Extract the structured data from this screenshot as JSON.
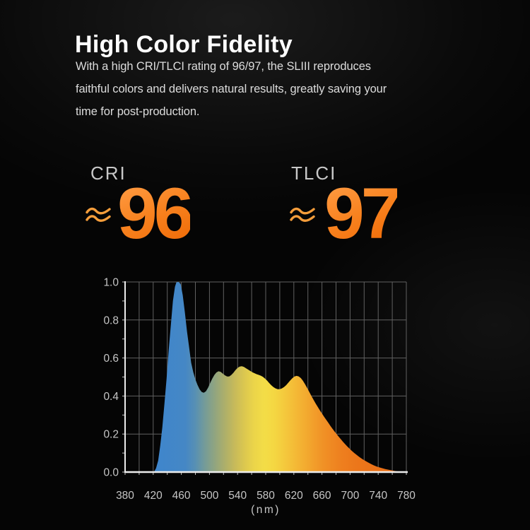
{
  "header": {
    "title": "High Color Fidelity",
    "body_lines": [
      "With a high CRI/TLCI rating of 96/97, the SLIII reproduces",
      "faithful colors and delivers natural results, greatly saving your",
      "time for post-production."
    ]
  },
  "stats": [
    {
      "label": "CRI",
      "approx_symbol": "≈",
      "value": "96"
    },
    {
      "label": "TLCI",
      "approx_symbol": "≈",
      "value": "97"
    }
  ],
  "colors": {
    "background": "#050505",
    "title_text": "#ffffff",
    "body_text": "#dcdcdc",
    "stat_label": "#c8c8c8",
    "stat_orange_light": "#ff9d45",
    "stat_orange_dark": "#ef6a06",
    "approx_orange": "#f49d3b",
    "axis": "#ececec",
    "grid": "#616161",
    "tick_text": "#c6c6c6",
    "spectrum_blue": "#3e86cd",
    "spectrum_yellow": "#f3dd47",
    "spectrum_orange": "#e86f18"
  },
  "chart_data": {
    "type": "area",
    "xlabel": "(nm)",
    "x_range": [
      380,
      780
    ],
    "y_range": [
      0,
      1
    ],
    "grid_x_step": 20,
    "grid_y_step": 0.2,
    "minor_tick_x_step": 20,
    "minor_tick_y_step": 0.1,
    "x_ticks": [
      380,
      420,
      460,
      500,
      540,
      580,
      620,
      660,
      700,
      740,
      780
    ],
    "y_ticks": [
      0,
      0.2,
      0.4,
      0.6,
      0.8,
      1
    ],
    "y_tick_labels": [
      "0.0",
      "0.2",
      "0.4",
      "0.6",
      "0.8",
      "1.0"
    ],
    "legend": "none",
    "points": [
      [
        421,
        0
      ],
      [
        424,
        0.02
      ],
      [
        427,
        0.06
      ],
      [
        430,
        0.14
      ],
      [
        433,
        0.235
      ],
      [
        436,
        0.36
      ],
      [
        439,
        0.49
      ],
      [
        442,
        0.64
      ],
      [
        445,
        0.77
      ],
      [
        448,
        0.9
      ],
      [
        451,
        0.975
      ],
      [
        453,
        0.998
      ],
      [
        456,
        1.0
      ],
      [
        459,
        0.99
      ],
      [
        462,
        0.93
      ],
      [
        465,
        0.84
      ],
      [
        468,
        0.74
      ],
      [
        471,
        0.66
      ],
      [
        474,
        0.575
      ],
      [
        477,
        0.525
      ],
      [
        480,
        0.487
      ],
      [
        483,
        0.458
      ],
      [
        486,
        0.435
      ],
      [
        489,
        0.421
      ],
      [
        492,
        0.417
      ],
      [
        495,
        0.425
      ],
      [
        498,
        0.443
      ],
      [
        501,
        0.468
      ],
      [
        504,
        0.492
      ],
      [
        507,
        0.511
      ],
      [
        510,
        0.524
      ],
      [
        513,
        0.53
      ],
      [
        516,
        0.527
      ],
      [
        519,
        0.518
      ],
      [
        522,
        0.509
      ],
      [
        525,
        0.503
      ],
      [
        528,
        0.503
      ],
      [
        531,
        0.51
      ],
      [
        534,
        0.522
      ],
      [
        537,
        0.536
      ],
      [
        540,
        0.548
      ],
      [
        543,
        0.555
      ],
      [
        546,
        0.557
      ],
      [
        549,
        0.553
      ],
      [
        552,
        0.546
      ],
      [
        555,
        0.539
      ],
      [
        558,
        0.532
      ],
      [
        561,
        0.525
      ],
      [
        564,
        0.52
      ],
      [
        567,
        0.515
      ],
      [
        570,
        0.511
      ],
      [
        573,
        0.507
      ],
      [
        576,
        0.501
      ],
      [
        579,
        0.492
      ],
      [
        582,
        0.481
      ],
      [
        585,
        0.468
      ],
      [
        588,
        0.456
      ],
      [
        591,
        0.447
      ],
      [
        594,
        0.44
      ],
      [
        597,
        0.436
      ],
      [
        600,
        0.436
      ],
      [
        603,
        0.44
      ],
      [
        606,
        0.447
      ],
      [
        609,
        0.457
      ],
      [
        612,
        0.469
      ],
      [
        615,
        0.482
      ],
      [
        618,
        0.494
      ],
      [
        621,
        0.503
      ],
      [
        624,
        0.506
      ],
      [
        627,
        0.503
      ],
      [
        630,
        0.494
      ],
      [
        633,
        0.48
      ],
      [
        636,
        0.462
      ],
      [
        639,
        0.442
      ],
      [
        642,
        0.421
      ],
      [
        645,
        0.4
      ],
      [
        648,
        0.38
      ],
      [
        651,
        0.361
      ],
      [
        654,
        0.343
      ],
      [
        657,
        0.325
      ],
      [
        660,
        0.308
      ],
      [
        663,
        0.291
      ],
      [
        666,
        0.275
      ],
      [
        669,
        0.259
      ],
      [
        672,
        0.243
      ],
      [
        675,
        0.228
      ],
      [
        678,
        0.213
      ],
      [
        681,
        0.199
      ],
      [
        684,
        0.185
      ],
      [
        687,
        0.172
      ],
      [
        690,
        0.159
      ],
      [
        693,
        0.147
      ],
      [
        696,
        0.135
      ],
      [
        699,
        0.124
      ],
      [
        702,
        0.113
      ],
      [
        706,
        0.1
      ],
      [
        710,
        0.088
      ],
      [
        714,
        0.077
      ],
      [
        718,
        0.067
      ],
      [
        722,
        0.058
      ],
      [
        726,
        0.05
      ],
      [
        730,
        0.042
      ],
      [
        734,
        0.035
      ],
      [
        738,
        0.029
      ],
      [
        742,
        0.024
      ],
      [
        746,
        0.02
      ],
      [
        750,
        0.016
      ],
      [
        755,
        0.012
      ],
      [
        760,
        0.008
      ],
      [
        765,
        0.005
      ],
      [
        770,
        0.003
      ],
      [
        775,
        0.002
      ],
      [
        780,
        0.001
      ]
    ],
    "gradient_stops": [
      [
        420,
        "#3e86cd"
      ],
      [
        466,
        "#4587c5"
      ],
      [
        480,
        "#5890b3"
      ],
      [
        494,
        "#769c97"
      ],
      [
        508,
        "#92a57f"
      ],
      [
        522,
        "#adaf6a"
      ],
      [
        536,
        "#c7ba5a"
      ],
      [
        550,
        "#dcc84f"
      ],
      [
        564,
        "#ecd549"
      ],
      [
        578,
        "#f3dd47"
      ],
      [
        592,
        "#f4d742"
      ],
      [
        606,
        "#f4ca3d"
      ],
      [
        620,
        "#f4bc37"
      ],
      [
        634,
        "#f3ae31"
      ],
      [
        648,
        "#f29f2b"
      ],
      [
        662,
        "#f09126"
      ],
      [
        676,
        "#ef8722"
      ],
      [
        690,
        "#ee7e1e"
      ],
      [
        708,
        "#ec771b"
      ],
      [
        730,
        "#eb7319"
      ],
      [
        780,
        "#e86f18"
      ]
    ]
  }
}
